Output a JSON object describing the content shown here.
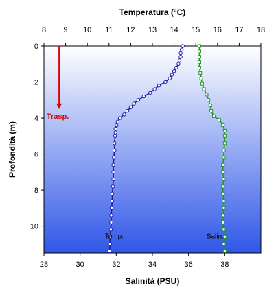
{
  "chart_data": {
    "type": "line",
    "title": "Temperatura (°C)",
    "top_axis": {
      "label": "Temperatura (°C)",
      "range": [
        8,
        18
      ],
      "ticks": [
        8,
        9,
        10,
        11,
        12,
        13,
        14,
        15,
        16,
        17,
        18
      ]
    },
    "bottom_axis": {
      "label": "Salinità (PSU)",
      "range": [
        28,
        40
      ],
      "ticks": [
        28,
        30,
        32,
        34,
        36,
        38
      ]
    },
    "y_axis": {
      "label": "Profondità (m)",
      "range": [
        0,
        11.5
      ],
      "inverted": true,
      "ticks": [
        0,
        2,
        4,
        6,
        8,
        10
      ]
    },
    "grid": false,
    "background": {
      "top_color": "#ffffff",
      "bottom_color": "#2f57e8"
    },
    "series": [
      {
        "name": "Temp.",
        "axis": "top",
        "color": "#1a1aa6",
        "marker": "circle",
        "points": [
          [
            14.4,
            0.0
          ],
          [
            14.35,
            0.2
          ],
          [
            14.3,
            0.4
          ],
          [
            14.3,
            0.6
          ],
          [
            14.25,
            0.8
          ],
          [
            14.2,
            1.0
          ],
          [
            14.1,
            1.2
          ],
          [
            14.0,
            1.4
          ],
          [
            13.9,
            1.6
          ],
          [
            13.8,
            1.8
          ],
          [
            13.6,
            2.0
          ],
          [
            13.3,
            2.2
          ],
          [
            13.1,
            2.4
          ],
          [
            12.9,
            2.6
          ],
          [
            12.6,
            2.8
          ],
          [
            12.35,
            3.0
          ],
          [
            12.15,
            3.2
          ],
          [
            12.0,
            3.4
          ],
          [
            11.85,
            3.6
          ],
          [
            11.7,
            3.8
          ],
          [
            11.5,
            4.0
          ],
          [
            11.4,
            4.2
          ],
          [
            11.35,
            4.4
          ],
          [
            11.3,
            4.6
          ],
          [
            11.3,
            4.8
          ],
          [
            11.28,
            5.0
          ],
          [
            11.25,
            5.4
          ],
          [
            11.25,
            5.8
          ],
          [
            11.22,
            6.2
          ],
          [
            11.2,
            6.6
          ],
          [
            11.2,
            7.0
          ],
          [
            11.2,
            7.4
          ],
          [
            11.18,
            7.8
          ],
          [
            11.15,
            8.2
          ],
          [
            11.15,
            8.6
          ],
          [
            11.12,
            9.0
          ],
          [
            11.1,
            9.4
          ],
          [
            11.1,
            9.8
          ],
          [
            11.08,
            10.2
          ],
          [
            11.05,
            10.6
          ],
          [
            11.05,
            11.0
          ],
          [
            11.02,
            11.4
          ]
        ]
      },
      {
        "name": "Salin.",
        "axis": "bottom",
        "color": "#1f9a1f",
        "marker": "square",
        "points": [
          [
            36.6,
            0.0
          ],
          [
            36.6,
            0.3
          ],
          [
            36.6,
            0.6
          ],
          [
            36.6,
            0.9
          ],
          [
            36.6,
            1.2
          ],
          [
            36.65,
            1.5
          ],
          [
            36.7,
            1.8
          ],
          [
            36.75,
            2.1
          ],
          [
            36.85,
            2.4
          ],
          [
            37.0,
            2.7
          ],
          [
            37.1,
            3.0
          ],
          [
            37.2,
            3.3
          ],
          [
            37.25,
            3.6
          ],
          [
            37.4,
            3.9
          ],
          [
            37.7,
            4.1
          ],
          [
            37.9,
            4.4
          ],
          [
            38.0,
            4.7
          ],
          [
            38.0,
            5.0
          ],
          [
            38.0,
            5.4
          ],
          [
            37.95,
            5.8
          ],
          [
            37.95,
            6.2
          ],
          [
            37.9,
            6.6
          ],
          [
            37.9,
            7.0
          ],
          [
            37.95,
            7.4
          ],
          [
            37.9,
            7.8
          ],
          [
            37.9,
            8.2
          ],
          [
            37.95,
            8.6
          ],
          [
            37.95,
            9.0
          ],
          [
            37.9,
            9.4
          ],
          [
            37.9,
            9.8
          ],
          [
            37.95,
            10.2
          ],
          [
            38.0,
            10.6
          ],
          [
            37.95,
            11.0
          ],
          [
            38.0,
            11.4
          ]
        ]
      }
    ],
    "annotations": [
      {
        "text": "Temp.",
        "series": "Temp."
      },
      {
        "text": "Salin.",
        "series": "Salin."
      }
    ],
    "arrow": {
      "label": "Trasp.",
      "color": "#e00000",
      "from_depth": 0,
      "to_depth": 3.5,
      "temp_x": 8.7
    }
  }
}
